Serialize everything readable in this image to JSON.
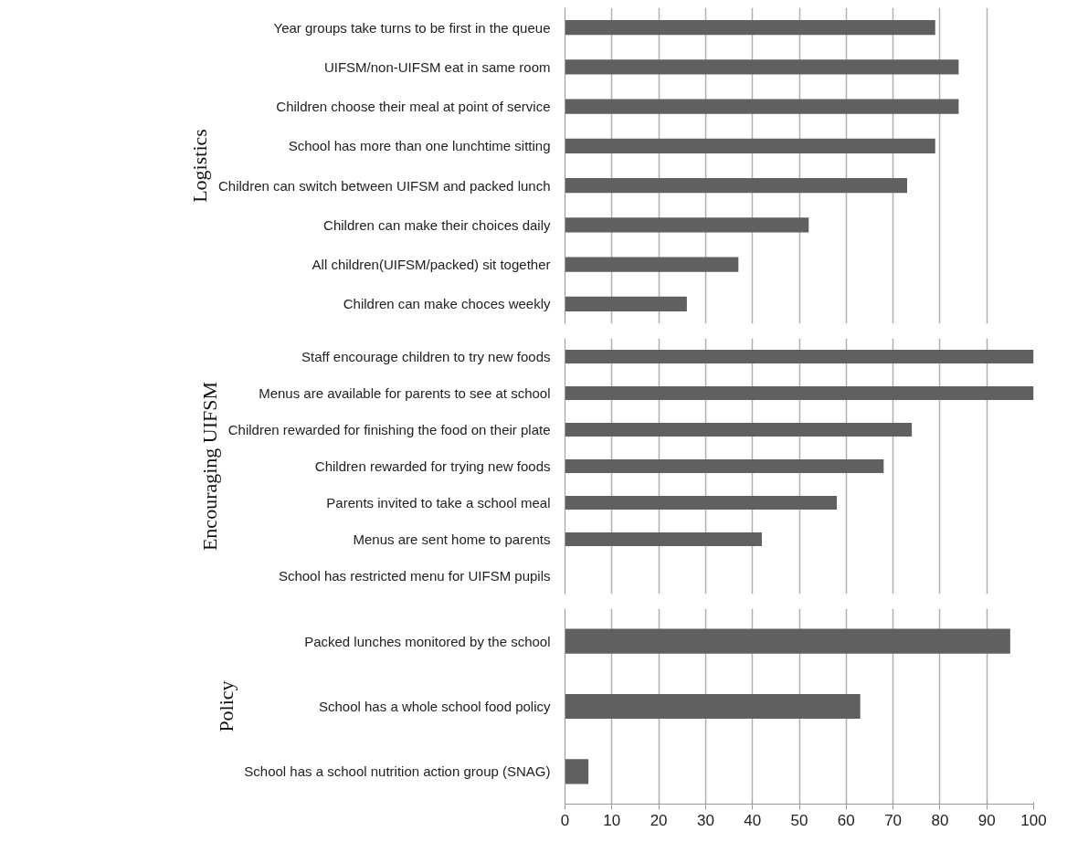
{
  "chart_data": [
    {
      "type": "bar",
      "orientation": "horizontal",
      "ylabel": "Logistics",
      "categories": [
        "Year groups take turns to be first in the queue",
        "UIFSM/non-UIFSM eat in same room",
        "Children choose their meal at point of service",
        "School has more than one lunchtime sitting",
        "Children can switch between UIFSM and packed lunch",
        "Children can make their choices daily",
        "All children(UIFSM/packed) sit together",
        "Children can make choces weekly"
      ],
      "values": [
        79,
        84,
        84,
        79,
        73,
        52,
        37,
        26
      ],
      "color": "#606060",
      "xlim": [
        0,
        100
      ],
      "xticks": [
        0,
        10,
        20,
        30,
        40,
        50,
        60,
        70,
        80,
        90,
        100
      ],
      "grid": "x",
      "tick_labels": "y"
    },
    {
      "type": "bar",
      "orientation": "horizontal",
      "ylabel": "Encouraging UIFSM",
      "categories": [
        "Staff encourage children to try new foods",
        "Menus are available for parents to see at school",
        "Children rewarded for finishing the food on their plate",
        "Children rewarded for trying new foods",
        "Parents invited to take a school meal",
        "Menus are sent home to parents",
        "School has restricted menu for UIFSM pupils"
      ],
      "values": [
        100,
        100,
        74,
        68,
        58,
        42,
        0
      ],
      "color": "#606060",
      "xlim": [
        0,
        100
      ],
      "xticks": [
        0,
        10,
        20,
        30,
        40,
        50,
        60,
        70,
        80,
        90,
        100
      ],
      "grid": "x",
      "tick_labels": "y"
    },
    {
      "type": "bar",
      "orientation": "horizontal",
      "ylabel": "Policy",
      "categories": [
        "Packed lunches monitored by the school",
        "School has a whole school food policy",
        "School has a school nutrition action group (SNAG)"
      ],
      "values": [
        95,
        63,
        5
      ],
      "color": "#606060",
      "xlim": [
        0,
        100
      ],
      "xticks": [
        0,
        10,
        20,
        30,
        40,
        50,
        60,
        70,
        80,
        90,
        100
      ],
      "grid": "x"
    }
  ]
}
